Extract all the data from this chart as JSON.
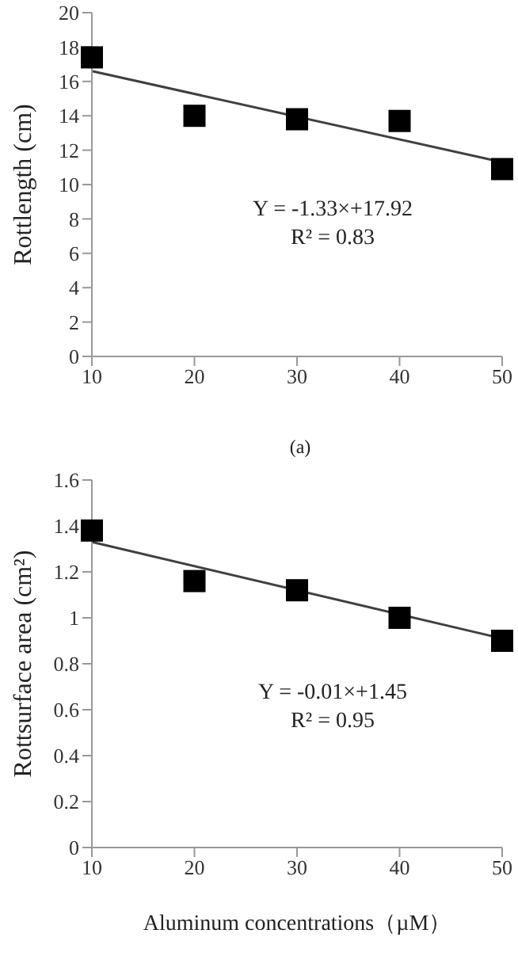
{
  "chart_data": [
    {
      "type": "scatter",
      "ylabel": "Rottlength (cm)",
      "grid": false,
      "legend": false,
      "annotations": [
        "Y = -1.33×+17.92",
        "R² = 0.83",
        "(a)"
      ],
      "xlim": [
        10,
        50
      ],
      "xticks": [
        10,
        20,
        30,
        40,
        50
      ],
      "ylim": [
        0,
        20
      ],
      "yticks": [
        0,
        2,
        4,
        6,
        8,
        10,
        12,
        14,
        16,
        18,
        20
      ],
      "series": [
        {
          "color": "#000000",
          "marker": "square",
          "x": [
            10,
            20,
            30,
            40,
            50
          ],
          "values": [
            17.4,
            14.0,
            13.8,
            13.7,
            10.9
          ]
        },
        {
          "type": "line",
          "marker": "none",
          "color": "#404040",
          "x": [
            10,
            50
          ],
          "values": [
            16.6,
            11.3
          ]
        }
      ]
    },
    {
      "type": "scatter",
      "xlabel": "Aluminum concentrations（µM）",
      "ylabel": "Rottsurface area (cm²)",
      "grid": false,
      "legend": false,
      "annotations": [
        "Y = -0.01×+1.45",
        "R² = 0.95"
      ],
      "xlim": [
        10,
        50
      ],
      "xticks": [
        10,
        20,
        30,
        40,
        50
      ],
      "ylim": [
        0,
        1.6
      ],
      "yticks": [
        0,
        0.2,
        0.4,
        0.6,
        0.8,
        1,
        1.2,
        1.4,
        1.6
      ],
      "series": [
        {
          "color": "#000000",
          "marker": "square",
          "x": [
            10,
            20,
            30,
            40,
            50
          ],
          "values": [
            1.38,
            1.16,
            1.12,
            1.0,
            0.9
          ]
        },
        {
          "type": "line",
          "marker": "none",
          "color": "#404040",
          "x": [
            10,
            50
          ],
          "values": [
            1.33,
            0.91
          ]
        }
      ]
    }
  ]
}
